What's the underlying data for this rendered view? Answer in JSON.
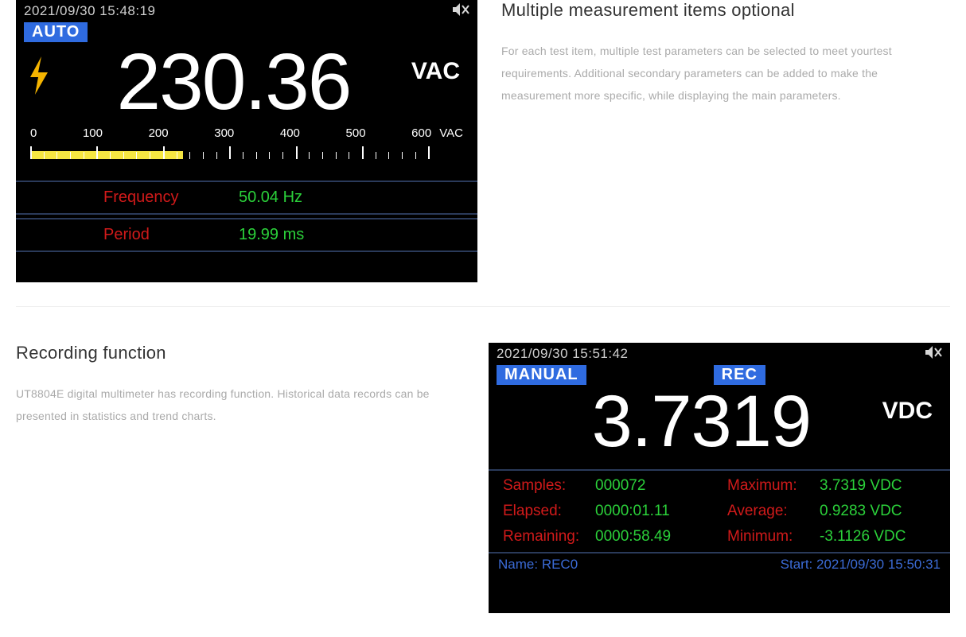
{
  "section1": {
    "heading": "Multiple measurement items optional",
    "body": "For each test item, multiple test parameters can be selected to meet yourtest requirements. Additional secondary parameters can be added to make the measurement more specific, while displaying the main parameters."
  },
  "section2": {
    "heading": "Recording function",
    "body": "UT8804E digital multimeter has recording function. Historical data records can be presented in statistics and trend charts."
  },
  "screen1": {
    "timestamp": "2021/09/30 15:48:19",
    "mute_label": "🔇",
    "mode": "AUTO",
    "value": "230.36",
    "unit": "VAC",
    "scale": {
      "min": 0,
      "max": 600,
      "major_step": 100,
      "minor_per_major": 5,
      "labels": [
        "0",
        "100",
        "200",
        "300",
        "400",
        "500",
        "600"
      ],
      "unit": "VAC",
      "fill_value": 230.36,
      "tick_color": "#ffffff",
      "fill_color": "#f5e642"
    },
    "params": [
      {
        "label": "Frequency",
        "value": "50.04  Hz"
      },
      {
        "label": "Period",
        "value": "19.99  ms"
      }
    ],
    "colors": {
      "label_color": "#d11a1a",
      "value_color": "#2bd13a",
      "badge_bg": "#2f6be0",
      "bolt_color": "#f5b400"
    }
  },
  "screen2": {
    "timestamp": "2021/09/30 15:51:42",
    "mute_label": "🔇",
    "mode": "MANUAL",
    "rec_badge": "REC",
    "value": "3.7319",
    "unit": "VDC",
    "stats_left": [
      {
        "label": "Samples:",
        "value": "000072"
      },
      {
        "label": "Elapsed:",
        "value": "0000:01.11"
      },
      {
        "label": "Remaining:",
        "value": "0000:58.49"
      }
    ],
    "stats_right": [
      {
        "label": "Maximum:",
        "value": "3.7319  VDC"
      },
      {
        "label": "Average:",
        "value": "0.9283  VDC"
      },
      {
        "label": "Minimum:",
        "value": "-3.1126  VDC"
      }
    ],
    "footer": {
      "name_label": "Name:",
      "name_value": "REC0",
      "start_label": "Start:",
      "start_value": "2021/09/30 15:50:31"
    },
    "colors": {
      "label_color": "#d11a1a",
      "value_color": "#2bd13a",
      "footer_color": "#3b6bd6",
      "badge_bg": "#2f6be0"
    }
  }
}
